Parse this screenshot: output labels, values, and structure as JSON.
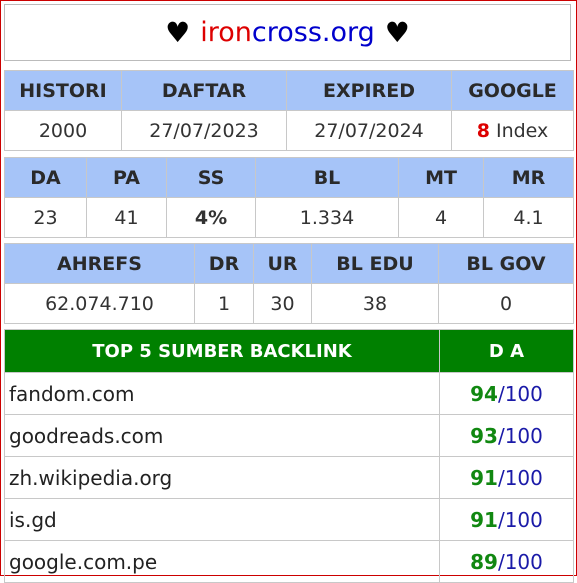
{
  "header": {
    "heart": "♥",
    "domain_part1": "iron",
    "domain_part2": "cross.org"
  },
  "table1": {
    "headers": [
      "HISTORI",
      "DAFTAR",
      "EXPIRED",
      "GOOGLE"
    ],
    "values": [
      "2000",
      "27/07/2023",
      "27/07/2024"
    ],
    "google_count": "8",
    "google_label": " Index"
  },
  "table2": {
    "headers": [
      "DA",
      "PA",
      "SS",
      "BL",
      "MT",
      "MR"
    ],
    "values": [
      "23",
      "41",
      "4%",
      "1.334",
      "4",
      "4.1"
    ]
  },
  "table3": {
    "headers": [
      "AHREFS",
      "DR",
      "UR",
      "BL EDU",
      "BL GOV"
    ],
    "values": [
      "62.074.710",
      "1",
      "30",
      "38",
      "0"
    ]
  },
  "backlinks": {
    "header_site": "TOP 5 SUMBER BACKLINK",
    "header_da": "D A",
    "max": "100",
    "rows": [
      {
        "site": "fandom.com",
        "da": "94"
      },
      {
        "site": "goodreads.com",
        "da": "93"
      },
      {
        "site": "zh.wikipedia.org",
        "da": "91"
      },
      {
        "site": "is.gd",
        "da": "91"
      },
      {
        "site": "google.com.pe",
        "da": "89"
      }
    ]
  },
  "colors": {
    "header_bg": "#a6c4f8",
    "backlink_header_bg": "#008000",
    "frame_border": "#cc0000",
    "domain_red": "#dd0000",
    "domain_blue": "#0000cc"
  }
}
